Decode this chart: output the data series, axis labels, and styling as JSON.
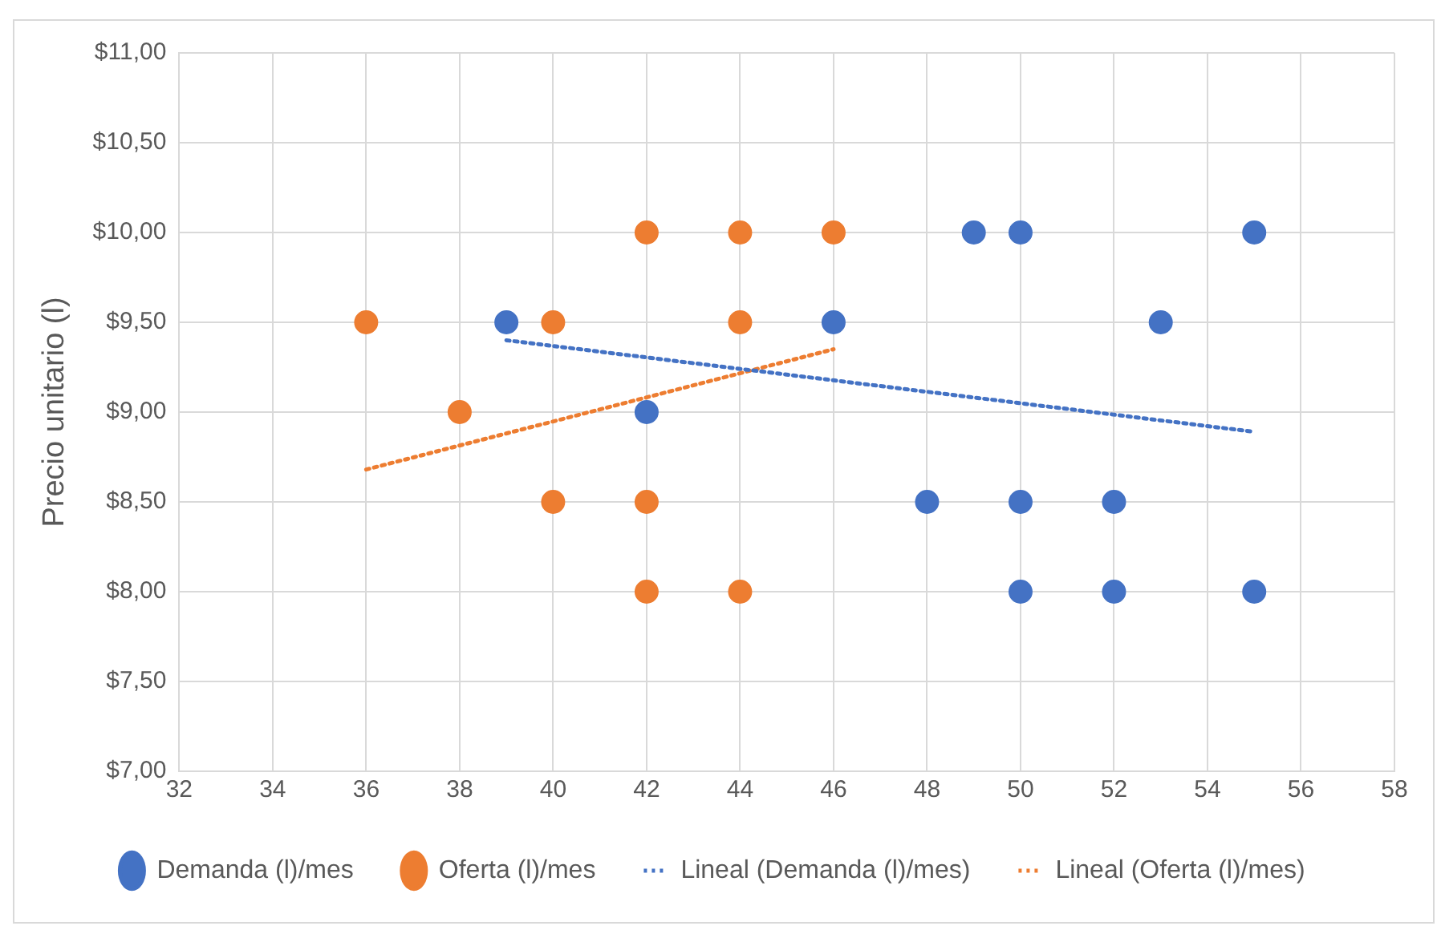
{
  "chart_data": {
    "type": "scatter",
    "ylabel": "Precio unitario (l)",
    "xlim": [
      32,
      58
    ],
    "xticks": [
      32,
      34,
      36,
      38,
      40,
      42,
      44,
      46,
      48,
      50,
      52,
      54,
      56,
      58
    ],
    "ylim": [
      7,
      11
    ],
    "yticks": [
      {
        "value": 7,
        "label": "$7,00"
      },
      {
        "value": 7.5,
        "label": "$7,50"
      },
      {
        "value": 8,
        "label": "$8,00"
      },
      {
        "value": 8.5,
        "label": "$8,50"
      },
      {
        "value": 9,
        "label": "$9,00"
      },
      {
        "value": 9.5,
        "label": "$9,50"
      },
      {
        "value": 10,
        "label": "$10,00"
      },
      {
        "value": 10.5,
        "label": "$10,50"
      },
      {
        "value": 11,
        "label": "$11,00"
      }
    ],
    "grid": true,
    "legend": "bottom",
    "marker": "circle",
    "series": [
      {
        "name": "Demanda (l)/mes",
        "color": "#4472c4",
        "x": [
          39,
          42,
          46,
          49,
          50,
          55,
          53,
          48,
          50,
          52,
          50,
          52,
          55
        ],
        "values": [
          9.5,
          9,
          9.5,
          10,
          10,
          10,
          9.5,
          8.5,
          8.5,
          8.5,
          8,
          8,
          8
        ]
      },
      {
        "name": "Oferta (l)/mes",
        "color": "#ed7d31",
        "x": [
          36,
          38,
          40,
          40,
          42,
          42,
          42,
          44,
          44,
          44,
          46
        ],
        "values": [
          9.5,
          9,
          9.5,
          8.5,
          10,
          8.5,
          8,
          10,
          9.5,
          8,
          10
        ]
      },
      {
        "name": "Lineal (Demanda (l)/mes)",
        "type": "line",
        "line_style": "dotted",
        "marker": "none",
        "color": "#4472c4",
        "x": [
          39,
          55
        ],
        "values": [
          9.4,
          8.89
        ]
      },
      {
        "name": "Lineal (Oferta (l)/mes)",
        "type": "line",
        "line_style": "dotted",
        "marker": "none",
        "color": "#ed7d31",
        "x": [
          36,
          46
        ],
        "values": [
          8.68,
          9.35
        ]
      }
    ]
  }
}
